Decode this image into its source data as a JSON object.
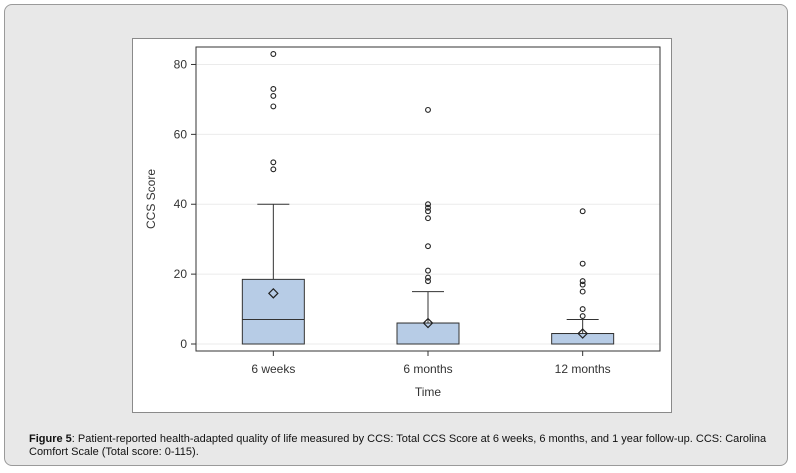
{
  "caption": {
    "label": "Figure 5",
    "text": ": Patient-reported health-adapted quality of life measured by CCS: Total CCS Score at 6 weeks, 6 months, and 1 year follow-up. CCS: Carolina Comfort Scale (Total score: 0-115)."
  },
  "chart_data": {
    "type": "box",
    "xlabel": "Time",
    "ylabel": "CCS Score",
    "ylim": [
      -2,
      85
    ],
    "yticks": [
      0,
      20,
      40,
      60,
      80
    ],
    "categories": [
      "6 weeks",
      "6 months",
      "12 months"
    ],
    "boxes": [
      {
        "category": "6 weeks",
        "min": 0,
        "q1": 0,
        "median": 7,
        "q3": 18.5,
        "max": 40,
        "mean": 14.5,
        "outliers": [
          83,
          73,
          71,
          68,
          52,
          50
        ]
      },
      {
        "category": "6 months",
        "min": 0,
        "q1": 0,
        "median": 6,
        "q3": 6,
        "max": 15,
        "mean": 6,
        "outliers": [
          67,
          40,
          39,
          38,
          36,
          28,
          21,
          19,
          18
        ]
      },
      {
        "category": "12 months",
        "min": 0,
        "q1": 0,
        "median": 3,
        "q3": 3,
        "max": 7,
        "mean": 3,
        "outliers": [
          38,
          23,
          18,
          17,
          15,
          10,
          8
        ]
      }
    ],
    "colors": {
      "box_fill": "#b7cce6",
      "box_stroke": "#333333",
      "grid": "#ebebeb",
      "marker": "#222222"
    },
    "grid": "horizontal"
  }
}
